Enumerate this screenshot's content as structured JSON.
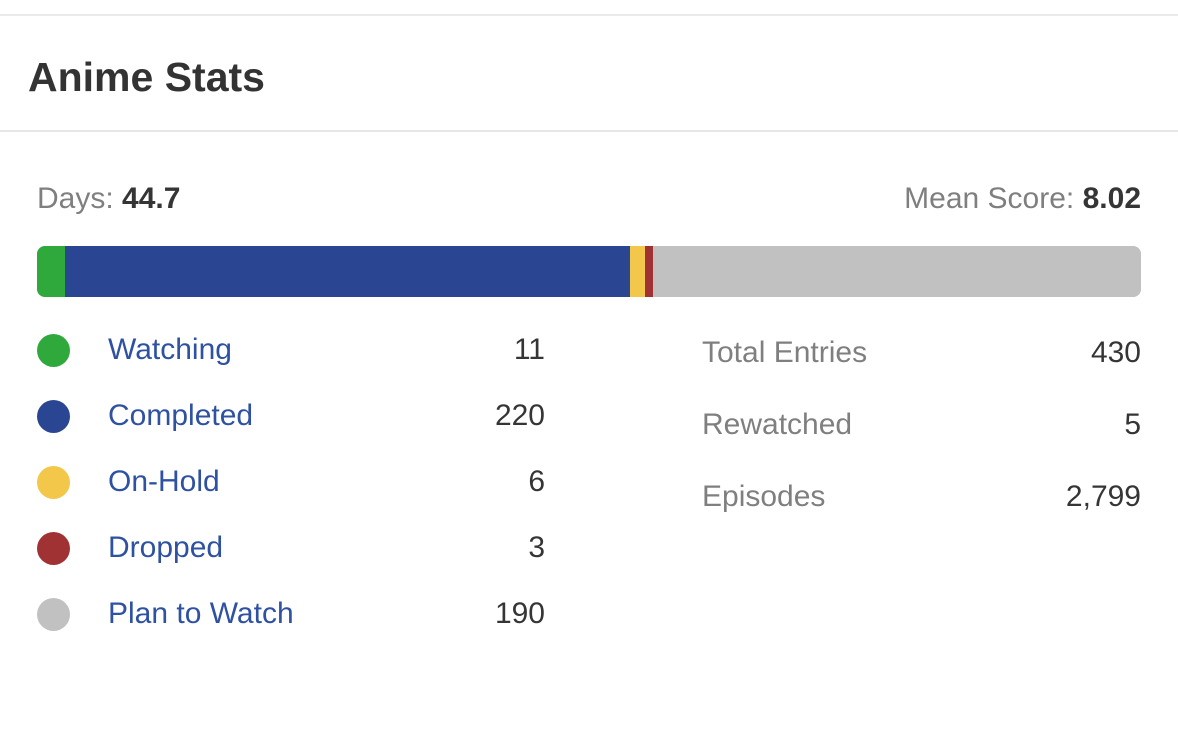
{
  "header": {
    "title": "Anime Stats"
  },
  "summary": {
    "days_label": "Days:",
    "days_value": "44.7",
    "mean_score_label": "Mean Score:",
    "mean_score_value": "8.02"
  },
  "chart_data": {
    "type": "bar",
    "variant": "horizontal-stacked-single-bar",
    "title": "Anime Stats",
    "categories": [
      "Watching",
      "Completed",
      "On-Hold",
      "Dropped",
      "Plan to Watch"
    ],
    "values": [
      11,
      220,
      6,
      3,
      190
    ],
    "total": 430,
    "colors": [
      "#2fa83c",
      "#2a4692",
      "#f2c74a",
      "#a03234",
      "#c1c1c1"
    ],
    "days": 44.7,
    "mean_score": 8.02,
    "grid": false,
    "legend_position": "below-left"
  },
  "legend": {
    "items": [
      {
        "label": "Watching",
        "value": "11",
        "color": "#2fa83c",
        "color_name": "green"
      },
      {
        "label": "Completed",
        "value": "220",
        "color": "#2a4692",
        "color_name": "blue"
      },
      {
        "label": "On-Hold",
        "value": "6",
        "color": "#f2c74a",
        "color_name": "yellow"
      },
      {
        "label": "Dropped",
        "value": "3",
        "color": "#a03234",
        "color_name": "dark-red"
      },
      {
        "label": "Plan to Watch",
        "value": "190",
        "color": "#c1c1c1",
        "color_name": "gray"
      }
    ]
  },
  "stats": {
    "items": [
      {
        "label": "Total Entries",
        "value": "430"
      },
      {
        "label": "Rewatched",
        "value": "5"
      },
      {
        "label": "Episodes",
        "value": "2,799"
      }
    ]
  },
  "colors": {
    "link_blue": "#2e51a2",
    "muted_text": "#7f7f7f",
    "dark_text": "#353535",
    "divider": "#e6e6e6"
  }
}
